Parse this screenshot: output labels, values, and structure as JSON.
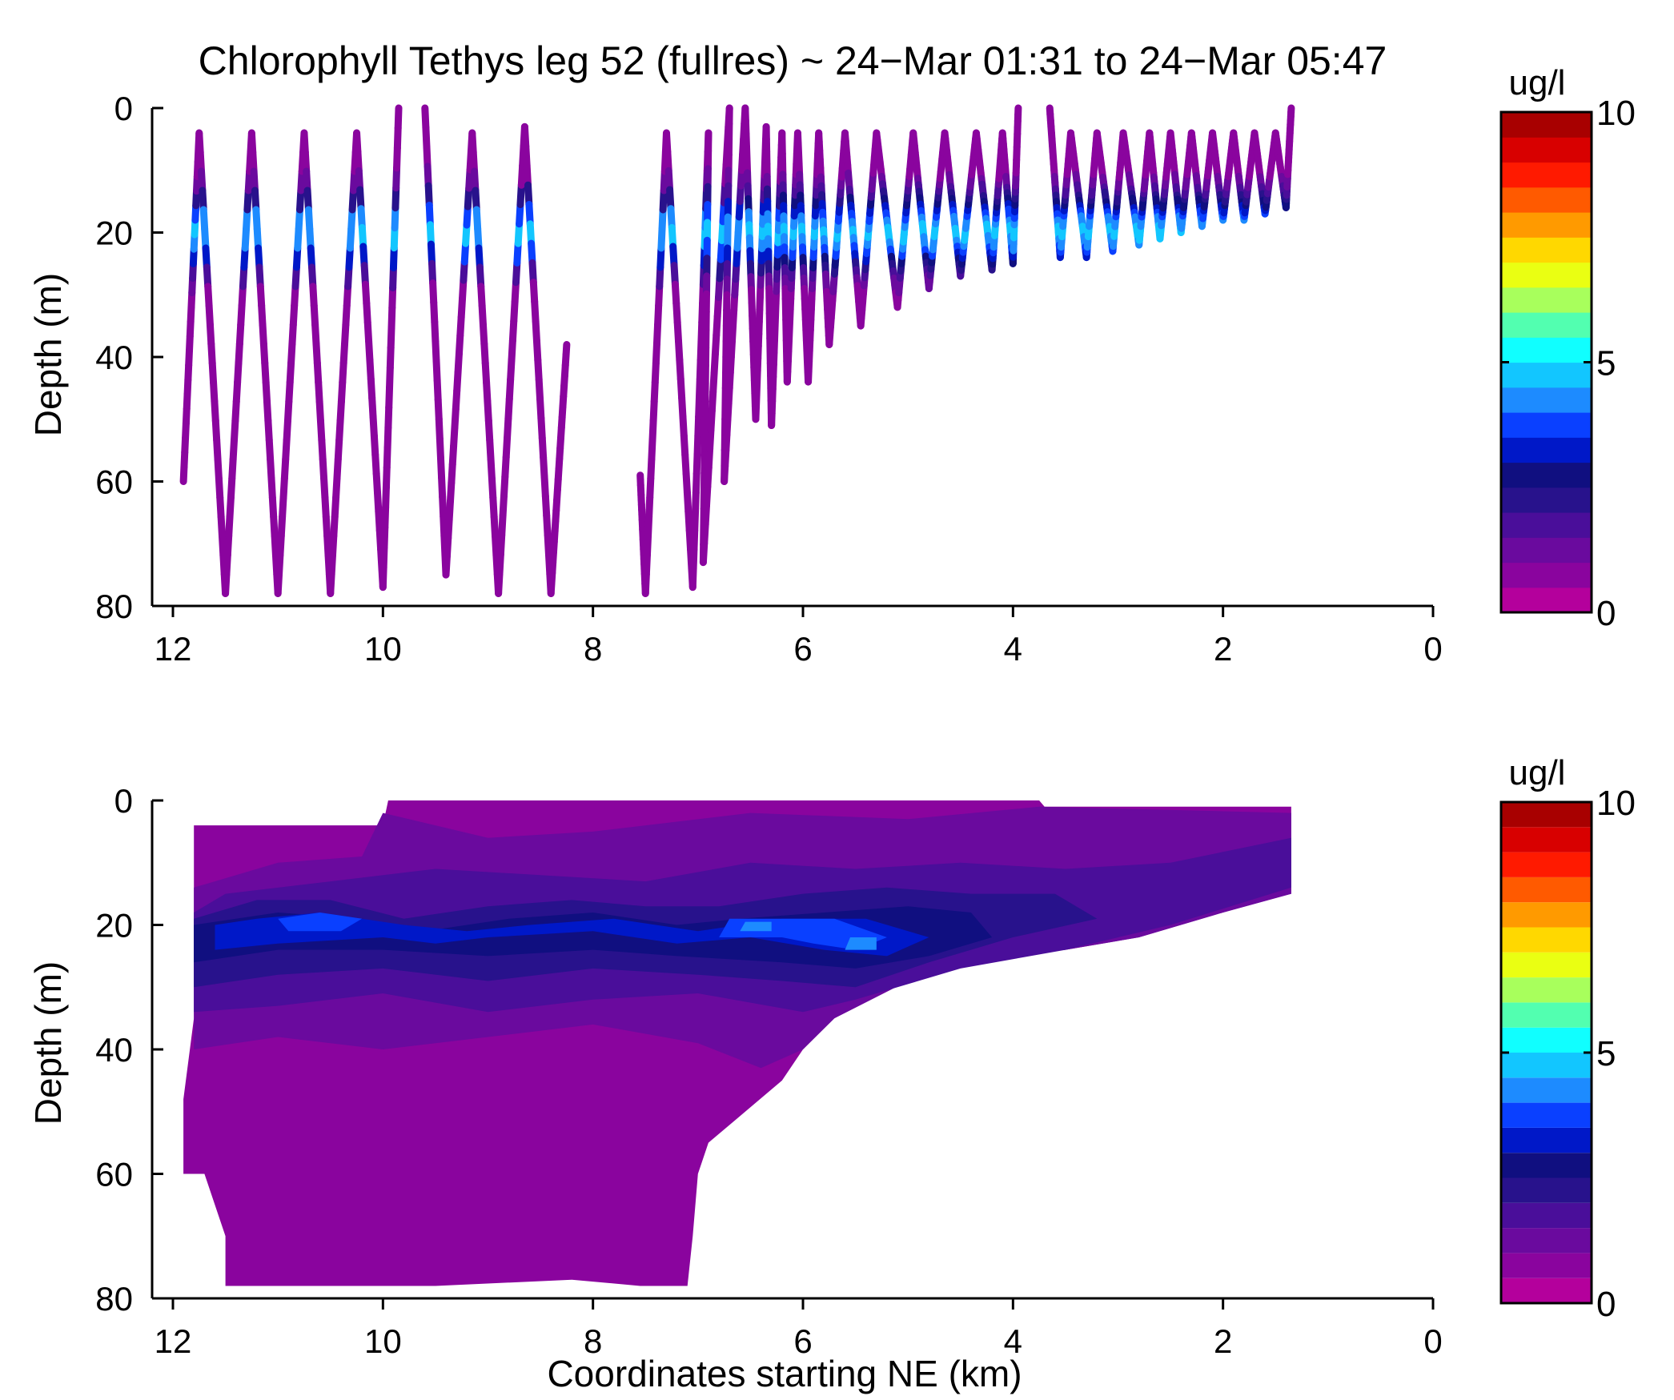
{
  "figure": {
    "title": "Chlorophyll Tethys leg 52 (fullres) ~ 24−Mar 01:31 to 24−Mar 05:47"
  },
  "colors": {
    "axis": "#000000",
    "colormap": [
      "#b4009c",
      "#8a049e",
      "#6a0a9e",
      "#4a0e9a",
      "#28128c",
      "#100f80",
      "#0018c8",
      "#0a40ff",
      "#1d8bff",
      "#12c6ff",
      "#10ffff",
      "#52ffb0",
      "#a8ff5c",
      "#eaff12",
      "#ffd800",
      "#ff9a00",
      "#ff5a00",
      "#ff1a00",
      "#d80000",
      "#a80000"
    ]
  },
  "chart_data": [
    {
      "type": "scatter",
      "subtype": "profile-trajectory",
      "xlabel": "",
      "ylabel": "Depth (m)",
      "xlim": [
        12,
        0
      ],
      "ylim": [
        80,
        0
      ],
      "x_ticks": [
        "12",
        "10",
        "8",
        "6",
        "4",
        "2",
        "0"
      ],
      "y_ticks": [
        "0",
        "20",
        "40",
        "60",
        "80"
      ],
      "colorbar": {
        "label": "ug/l",
        "range": [
          0,
          10
        ],
        "ticks": [
          "0",
          "5",
          "10"
        ]
      },
      "chlorophyll_max_depth_m": 20,
      "chlorophyll_max_ugl": 4,
      "segments": [
        {
          "points": [
            [
              11.9,
              60
            ],
            [
              11.75,
              4
            ],
            [
              11.5,
              78
            ],
            [
              11.25,
              4
            ],
            [
              11.0,
              78
            ],
            [
              10.75,
              4
            ],
            [
              10.5,
              78
            ],
            [
              10.25,
              4
            ],
            [
              10.0,
              77
            ],
            [
              9.85,
              0
            ]
          ]
        },
        {
          "points": [
            [
              9.6,
              0
            ],
            [
              9.4,
              75
            ],
            [
              9.15,
              4
            ],
            [
              8.9,
              78
            ],
            [
              8.65,
              3
            ],
            [
              8.4,
              78
            ],
            [
              8.25,
              38
            ]
          ]
        },
        {
          "points": [
            [
              7.55,
              59
            ],
            [
              7.5,
              78
            ],
            [
              7.3,
              4
            ],
            [
              7.05,
              77
            ],
            [
              6.9,
              4
            ],
            [
              6.95,
              73
            ],
            [
              6.7,
              0
            ],
            [
              6.75,
              60
            ],
            [
              6.55,
              0
            ],
            [
              6.45,
              50
            ],
            [
              6.35,
              3
            ],
            [
              6.3,
              51
            ],
            [
              6.2,
              4
            ],
            [
              6.15,
              44
            ],
            [
              6.05,
              4
            ],
            [
              5.95,
              44
            ],
            [
              5.85,
              4
            ],
            [
              5.75,
              38
            ],
            [
              5.6,
              4
            ],
            [
              5.45,
              35
            ],
            [
              5.3,
              4
            ],
            [
              5.1,
              32
            ],
            [
              4.95,
              4
            ],
            [
              4.8,
              29
            ],
            [
              4.65,
              4
            ],
            [
              4.5,
              27
            ],
            [
              4.35,
              4
            ],
            [
              4.2,
              26
            ],
            [
              4.1,
              4
            ],
            [
              4.0,
              25
            ],
            [
              3.95,
              0
            ]
          ]
        },
        {
          "points": [
            [
              3.65,
              0
            ],
            [
              3.55,
              24
            ],
            [
              3.45,
              4
            ],
            [
              3.3,
              24
            ],
            [
              3.2,
              4
            ],
            [
              3.05,
              23
            ],
            [
              2.95,
              4
            ],
            [
              2.8,
              22
            ],
            [
              2.7,
              4
            ],
            [
              2.6,
              21
            ],
            [
              2.5,
              4
            ],
            [
              2.4,
              20
            ],
            [
              2.3,
              4
            ],
            [
              2.2,
              19
            ],
            [
              2.1,
              4
            ],
            [
              2.0,
              18
            ],
            [
              1.9,
              4
            ],
            [
              1.8,
              18
            ],
            [
              1.7,
              4
            ],
            [
              1.6,
              17
            ],
            [
              1.5,
              4
            ],
            [
              1.4,
              16
            ],
            [
              1.35,
              0
            ]
          ]
        }
      ]
    },
    {
      "type": "heatmap",
      "subtype": "filled-contour",
      "xlabel": "Coordinates starting NE (km)",
      "ylabel": "Depth (m)",
      "xlim": [
        12,
        0
      ],
      "ylim": [
        80,
        0
      ],
      "x_ticks": [
        "12",
        "10",
        "8",
        "6",
        "4",
        "2",
        "0"
      ],
      "y_ticks": [
        "0",
        "20",
        "40",
        "60",
        "80"
      ],
      "colorbar": {
        "label": "ug/l",
        "range": [
          0,
          10
        ],
        "levels": 20,
        "ticks": [
          "0",
          "5",
          "10"
        ]
      },
      "data_extent": [
        [
          11.8,
          4
        ],
        [
          10.0,
          4
        ],
        [
          9.95,
          0
        ],
        [
          3.75,
          0
        ],
        [
          3.7,
          1
        ],
        [
          1.35,
          1
        ],
        [
          1.35,
          15
        ],
        [
          2.0,
          18
        ],
        [
          2.8,
          22
        ],
        [
          3.5,
          24
        ],
        [
          4.3,
          25
        ],
        [
          5.0,
          29
        ],
        [
          5.7,
          35
        ],
        [
          6.0,
          40
        ],
        [
          6.2,
          45
        ],
        [
          6.55,
          50
        ],
        [
          6.9,
          55
        ],
        [
          7.0,
          60
        ],
        [
          7.05,
          70
        ],
        [
          7.1,
          78
        ],
        [
          7.55,
          78
        ],
        [
          8.2,
          77
        ],
        [
          9.5,
          78
        ],
        [
          11.5,
          78
        ],
        [
          11.5,
          70
        ],
        [
          11.7,
          60
        ],
        [
          11.9,
          60
        ],
        [
          11.9,
          48
        ],
        [
          11.8,
          35
        ]
      ],
      "filled_levels": [
        {
          "value": 0.5,
          "points": [
            [
              11.8,
              4
            ],
            [
              10.0,
              4
            ],
            [
              9.95,
              0
            ],
            [
              3.75,
              0
            ],
            [
              3.7,
              1
            ],
            [
              1.35,
              1
            ],
            [
              1.35,
              15
            ],
            [
              2.0,
              18
            ],
            [
              2.8,
              22
            ],
            [
              3.5,
              24
            ],
            [
              4.3,
              25
            ],
            [
              5.0,
              29
            ],
            [
              5.7,
              35
            ],
            [
              6.0,
              40
            ],
            [
              6.2,
              45
            ],
            [
              6.55,
              50
            ],
            [
              6.9,
              55
            ],
            [
              7.0,
              60
            ],
            [
              7.05,
              70
            ],
            [
              7.1,
              78
            ],
            [
              7.55,
              78
            ],
            [
              8.2,
              77
            ],
            [
              9.5,
              78
            ],
            [
              11.5,
              78
            ],
            [
              11.5,
              70
            ],
            [
              11.7,
              60
            ],
            [
              11.9,
              60
            ],
            [
              11.9,
              48
            ],
            [
              11.8,
              35
            ]
          ]
        },
        {
          "value": 1.0,
          "points": [
            [
              11.8,
              40
            ],
            [
              11.0,
              38
            ],
            [
              10.0,
              40
            ],
            [
              9.0,
              38
            ],
            [
              8.0,
              36
            ],
            [
              7.0,
              39
            ],
            [
              6.4,
              43
            ],
            [
              6.0,
              40
            ],
            [
              5.7,
              35
            ],
            [
              5.0,
              29
            ],
            [
              4.3,
              25
            ],
            [
              3.5,
              24
            ],
            [
              2.8,
              22
            ],
            [
              2.0,
              18
            ],
            [
              1.35,
              15
            ],
            [
              1.35,
              2
            ],
            [
              3.75,
              1
            ],
            [
              5.0,
              3
            ],
            [
              6.5,
              2
            ],
            [
              8.0,
              5
            ],
            [
              9.0,
              6
            ],
            [
              10.0,
              2
            ],
            [
              10.2,
              9
            ],
            [
              11.0,
              10
            ],
            [
              11.8,
              14
            ]
          ]
        },
        {
          "value": 1.5,
          "points": [
            [
              11.8,
              34
            ],
            [
              11.0,
              33
            ],
            [
              10.0,
              31
            ],
            [
              9.0,
              34
            ],
            [
              8.0,
              32
            ],
            [
              7.0,
              31
            ],
            [
              6.0,
              34
            ],
            [
              5.5,
              32
            ],
            [
              4.5,
              27
            ],
            [
              3.5,
              24
            ],
            [
              2.5,
              20
            ],
            [
              1.35,
              14
            ],
            [
              1.35,
              6
            ],
            [
              2.5,
              10
            ],
            [
              3.5,
              11
            ],
            [
              4.5,
              10
            ],
            [
              5.5,
              11
            ],
            [
              6.5,
              10
            ],
            [
              7.5,
              13
            ],
            [
              8.5,
              12
            ],
            [
              9.5,
              11
            ],
            [
              10.5,
              13
            ],
            [
              11.5,
              15
            ],
            [
              11.8,
              18
            ]
          ]
        },
        {
          "value": 2.0,
          "points": [
            [
              11.8,
              30
            ],
            [
              11.0,
              28
            ],
            [
              10.0,
              27
            ],
            [
              9.0,
              29
            ],
            [
              8.0,
              27
            ],
            [
              7.0,
              28
            ],
            [
              6.2,
              29
            ],
            [
              5.5,
              30
            ],
            [
              4.8,
              26
            ],
            [
              4.0,
              22
            ],
            [
              3.2,
              19
            ],
            [
              3.6,
              15
            ],
            [
              4.4,
              15
            ],
            [
              5.2,
              14
            ],
            [
              6.0,
              15
            ],
            [
              6.8,
              17
            ],
            [
              7.5,
              17
            ],
            [
              8.2,
              16
            ],
            [
              9.0,
              17
            ],
            [
              9.8,
              19
            ],
            [
              10.5,
              16
            ],
            [
              11.2,
              16
            ],
            [
              11.8,
              19
            ]
          ]
        },
        {
          "value": 2.5,
          "points": [
            [
              11.8,
              26
            ],
            [
              11.0,
              24
            ],
            [
              10.0,
              24
            ],
            [
              9.0,
              25
            ],
            [
              8.0,
              24
            ],
            [
              7.2,
              25
            ],
            [
              6.2,
              26
            ],
            [
              5.5,
              27
            ],
            [
              4.8,
              25
            ],
            [
              4.2,
              22
            ],
            [
              4.4,
              18
            ],
            [
              5.0,
              17
            ],
            [
              5.8,
              18
            ],
            [
              6.6,
              19
            ],
            [
              7.2,
              20
            ],
            [
              8.0,
              18
            ],
            [
              8.8,
              19
            ],
            [
              9.6,
              21
            ],
            [
              10.2,
              19
            ],
            [
              11.0,
              18
            ],
            [
              11.8,
              20
            ]
          ]
        },
        {
          "value": 3.0,
          "points": [
            [
              11.6,
              24
            ],
            [
              11.0,
              23
            ],
            [
              10.0,
              22
            ],
            [
              9.5,
              23
            ],
            [
              9.0,
              22
            ],
            [
              8.0,
              21
            ],
            [
              7.2,
              23
            ],
            [
              6.5,
              22
            ],
            [
              5.8,
              24
            ],
            [
              5.2,
              25
            ],
            [
              4.8,
              22
            ],
            [
              5.4,
              19
            ],
            [
              6.2,
              19
            ],
            [
              7.0,
              21
            ],
            [
              7.8,
              19
            ],
            [
              8.6,
              20
            ],
            [
              9.2,
              21
            ],
            [
              9.8,
              20
            ],
            [
              10.6,
              18
            ],
            [
              11.2,
              19
            ],
            [
              11.6,
              20
            ]
          ]
        },
        {
          "value": 3.5,
          "points": [
            [
              10.9,
              21
            ],
            [
              10.4,
              21
            ],
            [
              10.2,
              19
            ],
            [
              10.6,
              18
            ],
            [
              11.0,
              19
            ]
          ]
        },
        {
          "value": 3.5,
          "points": [
            [
              6.8,
              22
            ],
            [
              6.2,
              22
            ],
            [
              5.9,
              23
            ],
            [
              5.5,
              24
            ],
            [
              5.2,
              22
            ],
            [
              5.7,
              19
            ],
            [
              6.4,
              19
            ],
            [
              6.7,
              19
            ]
          ]
        },
        {
          "value": 4.0,
          "points": [
            [
              6.6,
              21
            ],
            [
              6.3,
              21
            ],
            [
              6.3,
              19.5
            ],
            [
              6.55,
              19.5
            ]
          ]
        },
        {
          "value": 4.0,
          "points": [
            [
              5.6,
              24
            ],
            [
              5.3,
              24
            ],
            [
              5.3,
              22
            ],
            [
              5.55,
              22
            ]
          ]
        }
      ]
    }
  ]
}
